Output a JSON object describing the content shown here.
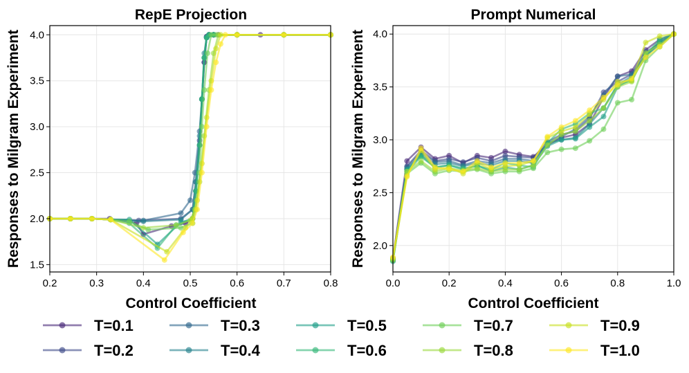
{
  "chart_data": [
    {
      "type": "line",
      "title": "RepE Projection",
      "xlabel": "Control Coefficient",
      "ylabel": "Responses to Milgram Experiment",
      "xlim": [
        0.2,
        0.8
      ],
      "ylim": [
        1.42,
        4.1
      ],
      "xticks": [
        "0.2",
        "0.3",
        "0.4",
        "0.5",
        "0.6",
        "0.7",
        "0.8"
      ],
      "yticks": [
        "1.5",
        "2.0",
        "2.5",
        "3.0",
        "3.5",
        "4.0"
      ],
      "grid": true,
      "series": [
        {
          "name": "T=0.1",
          "x": [
            0.2,
            0.244,
            0.29,
            0.328,
            0.385,
            0.4,
            0.46,
            0.49,
            0.505,
            0.512,
            0.52,
            0.525,
            0.53,
            0.535,
            0.54,
            0.55,
            0.56,
            0.6,
            0.65,
            0.7,
            0.8
          ],
          "y": [
            2.0,
            2.0,
            2.0,
            2.0,
            1.95,
            1.83,
            1.92,
            1.95,
            2.0,
            2.3,
            2.8,
            3.3,
            3.7,
            3.98,
            4.0,
            4.0,
            4.0,
            4.0,
            4.0,
            4.0,
            4.0
          ]
        },
        {
          "name": "T=0.2",
          "x": [
            0.2,
            0.244,
            0.29,
            0.33,
            0.39,
            0.48,
            0.505,
            0.512,
            0.52,
            0.525,
            0.53,
            0.535,
            0.54,
            0.55,
            0.6,
            0.7,
            0.8
          ],
          "y": [
            2.0,
            2.0,
            2.0,
            1.99,
            1.98,
            2.0,
            2.1,
            2.4,
            2.85,
            3.3,
            3.7,
            3.98,
            4.0,
            4.0,
            4.0,
            4.0,
            4.0
          ]
        },
        {
          "name": "T=0.3",
          "x": [
            0.2,
            0.244,
            0.29,
            0.33,
            0.4,
            0.48,
            0.5,
            0.51,
            0.52,
            0.525,
            0.53,
            0.535,
            0.54,
            0.55,
            0.6,
            0.7,
            0.8
          ],
          "y": [
            2.0,
            2.0,
            2.0,
            1.99,
            1.98,
            2.06,
            2.2,
            2.5,
            2.95,
            3.3,
            3.75,
            3.97,
            4.0,
            4.0,
            4.0,
            4.0,
            4.0
          ]
        },
        {
          "name": "T=0.4",
          "x": [
            0.2,
            0.244,
            0.29,
            0.33,
            0.4,
            0.48,
            0.505,
            0.512,
            0.52,
            0.525,
            0.53,
            0.535,
            0.54,
            0.55,
            0.6,
            0.7,
            0.8
          ],
          "y": [
            2.0,
            2.0,
            2.0,
            1.99,
            1.97,
            1.99,
            2.1,
            2.4,
            2.9,
            3.3,
            3.8,
            3.97,
            4.0,
            4.0,
            4.0,
            4.0,
            4.0
          ]
        },
        {
          "name": "T=0.5",
          "x": [
            0.2,
            0.244,
            0.29,
            0.33,
            0.37,
            0.43,
            0.48,
            0.505,
            0.512,
            0.52,
            0.525,
            0.53,
            0.535,
            0.54,
            0.55,
            0.6,
            0.7,
            0.8
          ],
          "y": [
            2.0,
            2.0,
            2.0,
            1.99,
            1.99,
            1.72,
            1.96,
            2.0,
            2.3,
            2.8,
            3.3,
            3.75,
            3.97,
            4.0,
            4.0,
            4.0,
            4.0,
            4.0
          ]
        },
        {
          "name": "T=0.6",
          "x": [
            0.2,
            0.244,
            0.29,
            0.33,
            0.37,
            0.43,
            0.47,
            0.505,
            0.512,
            0.52,
            0.525,
            0.53,
            0.535,
            0.54,
            0.55,
            0.6,
            0.7,
            0.8
          ],
          "y": [
            2.0,
            2.0,
            2.0,
            1.99,
            1.95,
            1.68,
            1.93,
            2.0,
            2.3,
            2.8,
            3.3,
            3.75,
            3.97,
            4.0,
            4.0,
            4.0,
            4.0,
            4.0
          ]
        },
        {
          "name": "T=0.7",
          "x": [
            0.2,
            0.244,
            0.29,
            0.33,
            0.37,
            0.41,
            0.48,
            0.505,
            0.512,
            0.52,
            0.525,
            0.53,
            0.537,
            0.545,
            0.555,
            0.6,
            0.7,
            0.8
          ],
          "y": [
            2.0,
            2.0,
            2.0,
            1.99,
            1.97,
            1.88,
            1.9,
            1.95,
            2.1,
            2.5,
            3.0,
            3.4,
            3.8,
            4.0,
            4.0,
            4.0,
            4.0,
            4.0
          ]
        },
        {
          "name": "T=0.8",
          "x": [
            0.2,
            0.244,
            0.29,
            0.33,
            0.4,
            0.47,
            0.5,
            0.51,
            0.52,
            0.53,
            0.54,
            0.55,
            0.56,
            0.6,
            0.7,
            0.8
          ],
          "y": [
            2.0,
            2.0,
            2.0,
            1.99,
            1.9,
            1.93,
            1.98,
            2.1,
            2.4,
            2.9,
            3.4,
            3.8,
            4.0,
            4.0,
            4.0,
            4.0
          ]
        },
        {
          "name": "T=0.9",
          "x": [
            0.2,
            0.244,
            0.29,
            0.33,
            0.45,
            0.49,
            0.505,
            0.515,
            0.525,
            0.535,
            0.545,
            0.555,
            0.565,
            0.6,
            0.7,
            0.8
          ],
          "y": [
            2.0,
            2.0,
            2.0,
            1.99,
            1.64,
            1.9,
            2.0,
            2.2,
            2.6,
            3.1,
            3.5,
            3.85,
            4.0,
            4.0,
            4.0,
            4.0
          ]
        },
        {
          "name": "T=1.0",
          "x": [
            0.2,
            0.244,
            0.29,
            0.33,
            0.445,
            0.485,
            0.505,
            0.515,
            0.525,
            0.535,
            0.545,
            0.555,
            0.565,
            0.575,
            0.6,
            0.7,
            0.8
          ],
          "y": [
            2.0,
            2.0,
            2.0,
            1.99,
            1.55,
            1.85,
            1.95,
            2.1,
            2.5,
            3.0,
            3.4,
            3.7,
            3.9,
            4.0,
            4.0,
            4.0,
            4.0
          ]
        }
      ]
    },
    {
      "type": "line",
      "title": "Prompt Numerical",
      "xlabel": "Control Coefficient",
      "ylabel": "Responses to Milgram Experiment",
      "xlim": [
        0.0,
        1.0
      ],
      "ylim": [
        1.75,
        4.08
      ],
      "xticks": [
        "0.0",
        "0.2",
        "0.4",
        "0.6",
        "0.8",
        "1.0"
      ],
      "yticks": [
        "2.0",
        "2.5",
        "3.0",
        "3.5",
        "4.0"
      ],
      "grid": true,
      "x": [
        0.0,
        0.05,
        0.1,
        0.15,
        0.2,
        0.25,
        0.3,
        0.35,
        0.4,
        0.45,
        0.5,
        0.55,
        0.6,
        0.65,
        0.7,
        0.75,
        0.8,
        0.85,
        0.9,
        0.95,
        1.0
      ],
      "series": [
        {
          "name": "T=0.1",
          "values": [
            1.88,
            2.8,
            2.93,
            2.82,
            2.85,
            2.78,
            2.85,
            2.83,
            2.89,
            2.86,
            2.84,
            2.95,
            3.02,
            3.05,
            3.15,
            3.4,
            3.6,
            3.65,
            3.85,
            3.95,
            4.0
          ]
        },
        {
          "name": "T=0.2",
          "values": [
            1.87,
            2.75,
            2.9,
            2.8,
            2.82,
            2.79,
            2.83,
            2.8,
            2.85,
            2.84,
            2.83,
            2.98,
            3.05,
            3.08,
            3.2,
            3.45,
            3.55,
            3.62,
            3.8,
            3.93,
            4.0
          ]
        },
        {
          "name": "T=0.3",
          "values": [
            1.86,
            2.74,
            2.88,
            2.79,
            2.8,
            2.76,
            2.8,
            2.78,
            2.82,
            2.82,
            2.8,
            2.96,
            3.03,
            3.1,
            3.22,
            3.42,
            3.6,
            3.62,
            3.83,
            3.91,
            4.0
          ]
        },
        {
          "name": "T=0.4",
          "values": [
            1.86,
            2.72,
            2.86,
            2.77,
            2.78,
            2.75,
            2.78,
            2.76,
            2.8,
            2.8,
            2.78,
            2.97,
            3.0,
            3.02,
            3.15,
            3.3,
            3.52,
            3.6,
            3.8,
            3.9,
            4.0
          ]
        },
        {
          "name": "T=0.5",
          "values": [
            1.85,
            2.72,
            2.85,
            2.74,
            2.76,
            2.72,
            2.76,
            2.7,
            2.74,
            2.72,
            2.76,
            2.94,
            3.0,
            3.01,
            3.12,
            3.22,
            3.5,
            3.58,
            3.78,
            3.92,
            4.0
          ]
        },
        {
          "name": "T=0.6",
          "values": [
            1.86,
            2.7,
            2.84,
            2.74,
            2.76,
            2.73,
            2.75,
            2.72,
            2.78,
            2.76,
            2.74,
            2.97,
            3.1,
            3.15,
            3.25,
            3.3,
            3.52,
            3.56,
            3.8,
            3.95,
            4.0
          ]
        },
        {
          "name": "T=0.7",
          "values": [
            1.86,
            2.68,
            2.78,
            2.68,
            2.71,
            2.7,
            2.72,
            2.68,
            2.7,
            2.7,
            2.73,
            2.88,
            2.91,
            2.92,
            2.99,
            3.1,
            3.35,
            3.38,
            3.75,
            3.88,
            4.0
          ]
        },
        {
          "name": "T=0.8",
          "values": [
            1.87,
            2.7,
            2.8,
            2.7,
            2.73,
            2.71,
            2.73,
            2.7,
            2.72,
            2.72,
            2.76,
            2.95,
            3.05,
            3.08,
            3.18,
            3.3,
            3.5,
            3.55,
            3.82,
            3.9,
            4.0
          ]
        },
        {
          "name": "T=0.9",
          "values": [
            1.88,
            2.66,
            2.9,
            2.72,
            2.74,
            2.68,
            2.78,
            2.72,
            2.75,
            2.76,
            2.8,
            3.02,
            3.08,
            3.12,
            3.24,
            3.38,
            3.55,
            3.56,
            3.92,
            3.98,
            4.0
          ]
        },
        {
          "name": "T=1.0",
          "values": [
            1.89,
            2.65,
            2.92,
            2.74,
            2.72,
            2.7,
            2.8,
            2.74,
            2.78,
            2.78,
            2.8,
            3.03,
            3.12,
            3.18,
            3.28,
            3.4,
            3.52,
            3.58,
            3.78,
            3.88,
            4.0
          ]
        }
      ]
    }
  ],
  "legend": {
    "placement": "bottom",
    "entries": [
      "T=0.1",
      "T=0.2",
      "T=0.3",
      "T=0.4",
      "T=0.5",
      "T=0.6",
      "T=0.7",
      "T=0.8",
      "T=0.9",
      "T=1.0"
    ]
  },
  "colors": {
    "T=0.1": "#482878",
    "T=0.2": "#3e4989",
    "T=0.3": "#31688e",
    "T=0.4": "#26828e",
    "T=0.5": "#1f9e89",
    "T=0.6": "#35b779",
    "T=0.7": "#6ece58",
    "T=0.8": "#9ad93c",
    "T=0.9": "#c8e020",
    "T=1.0": "#fde725",
    "grid": "#e6e6e6",
    "axis": "#000000"
  }
}
